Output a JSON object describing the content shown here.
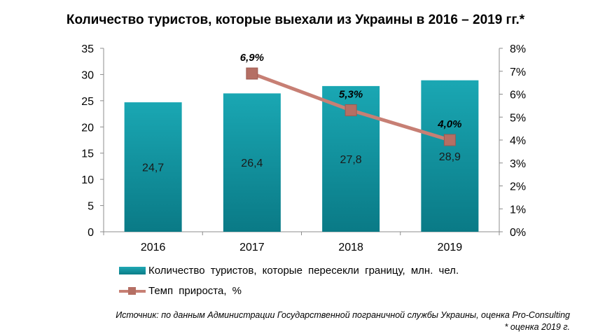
{
  "chart_data": {
    "type": "bar",
    "title": "Количество туристов, которые выехали из Украины в 2016 – 2019 гг.*",
    "categories": [
      "2016",
      "2017",
      "2018",
      "2019"
    ],
    "series": [
      {
        "name": "Количество туристов, которые пересекли границу, млн. чел.",
        "type": "bar",
        "axis": "left",
        "values": [
          24.7,
          26.4,
          27.8,
          28.9
        ],
        "labels": [
          "24,7",
          "26,4",
          "27,8",
          "28,9"
        ],
        "color": "#0f8f9a"
      },
      {
        "name": "Темп прироста, %",
        "type": "line",
        "axis": "right",
        "values": [
          null,
          6.9,
          5.3,
          4.0
        ],
        "labels": [
          "",
          "6,9%",
          "5,3%",
          "4,0%"
        ],
        "color": "#c77f74"
      }
    ],
    "y_left": {
      "ylim": [
        0,
        35
      ],
      "ticks": [
        "0",
        "5",
        "10",
        "15",
        "20",
        "25",
        "30",
        "35"
      ]
    },
    "y_right": {
      "ylim": [
        0,
        8
      ],
      "ticks": [
        "0%",
        "1%",
        "2%",
        "3%",
        "4%",
        "5%",
        "6%",
        "7%",
        "8%"
      ]
    },
    "grid": false,
    "legend": "bottom"
  },
  "source": {
    "line1": "Источник: по данным Администрации Государственной пограничной службы Украины, оценка Pro-Consulting",
    "line2": "* оценка 2019 г."
  }
}
